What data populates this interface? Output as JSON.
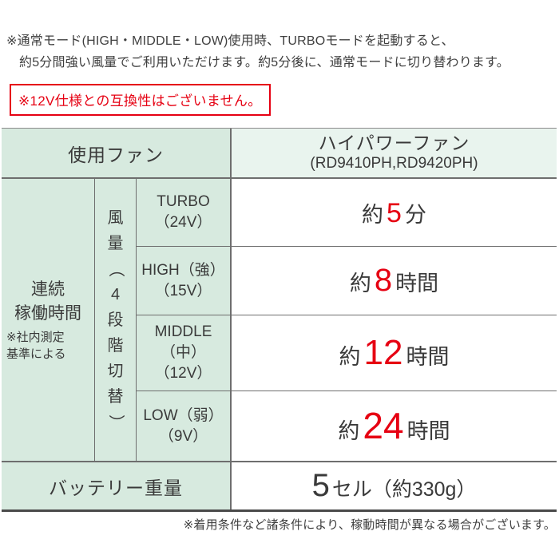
{
  "notes": {
    "top_line1": "※通常モード(HIGH・MIDDLE・LOW)使用時、TURBOモードを起動すると、",
    "top_line2": "約5分間強い風量でご利用いただけます。約5分後に、通常モードに切り替わります。",
    "warning": "※12V仕様との互換性はございません。",
    "footer": "※着用条件など諸条件により、稼動時間が異なる場合がございます。"
  },
  "table": {
    "fan_row": {
      "label": "使用ファン",
      "value_line1": "ハイパワーファン",
      "value_line2": "(RD9410PH,RD9420PH)"
    },
    "runtime": {
      "label_line1": "連続",
      "label_line2": "稼働時間",
      "label_note_line1": "※社内測定",
      "label_note_line2": "基準による",
      "mode_group_label": "風量（4段階切替）",
      "rows": [
        {
          "mode_line1": "TURBO",
          "mode_line2": "（24V）",
          "prefix": "約",
          "number": "5",
          "unit": "分"
        },
        {
          "mode_line1": "HIGH（強）",
          "mode_line2": "（15V）",
          "prefix": "約",
          "number": "8",
          "unit": "時間"
        },
        {
          "mode_line1": "MIDDLE",
          "mode_line2": "（中）",
          "mode_line3": "（12V）",
          "prefix": "約",
          "number": "12",
          "unit": "時間"
        },
        {
          "mode_line1": "LOW（弱）",
          "mode_line2": "（9V）",
          "prefix": "約",
          "number": "24",
          "unit": "時間"
        }
      ]
    },
    "battery_row": {
      "label": "バッテリー重量",
      "number": "5",
      "unit": "セル（約330g）"
    }
  },
  "colors": {
    "accent_red": "#e60012",
    "label_cell_green": "#d7eadf",
    "header_value_green": "#e9f4ee",
    "border_gray": "#6e6e6e",
    "text_dark": "#3a3a3a"
  }
}
